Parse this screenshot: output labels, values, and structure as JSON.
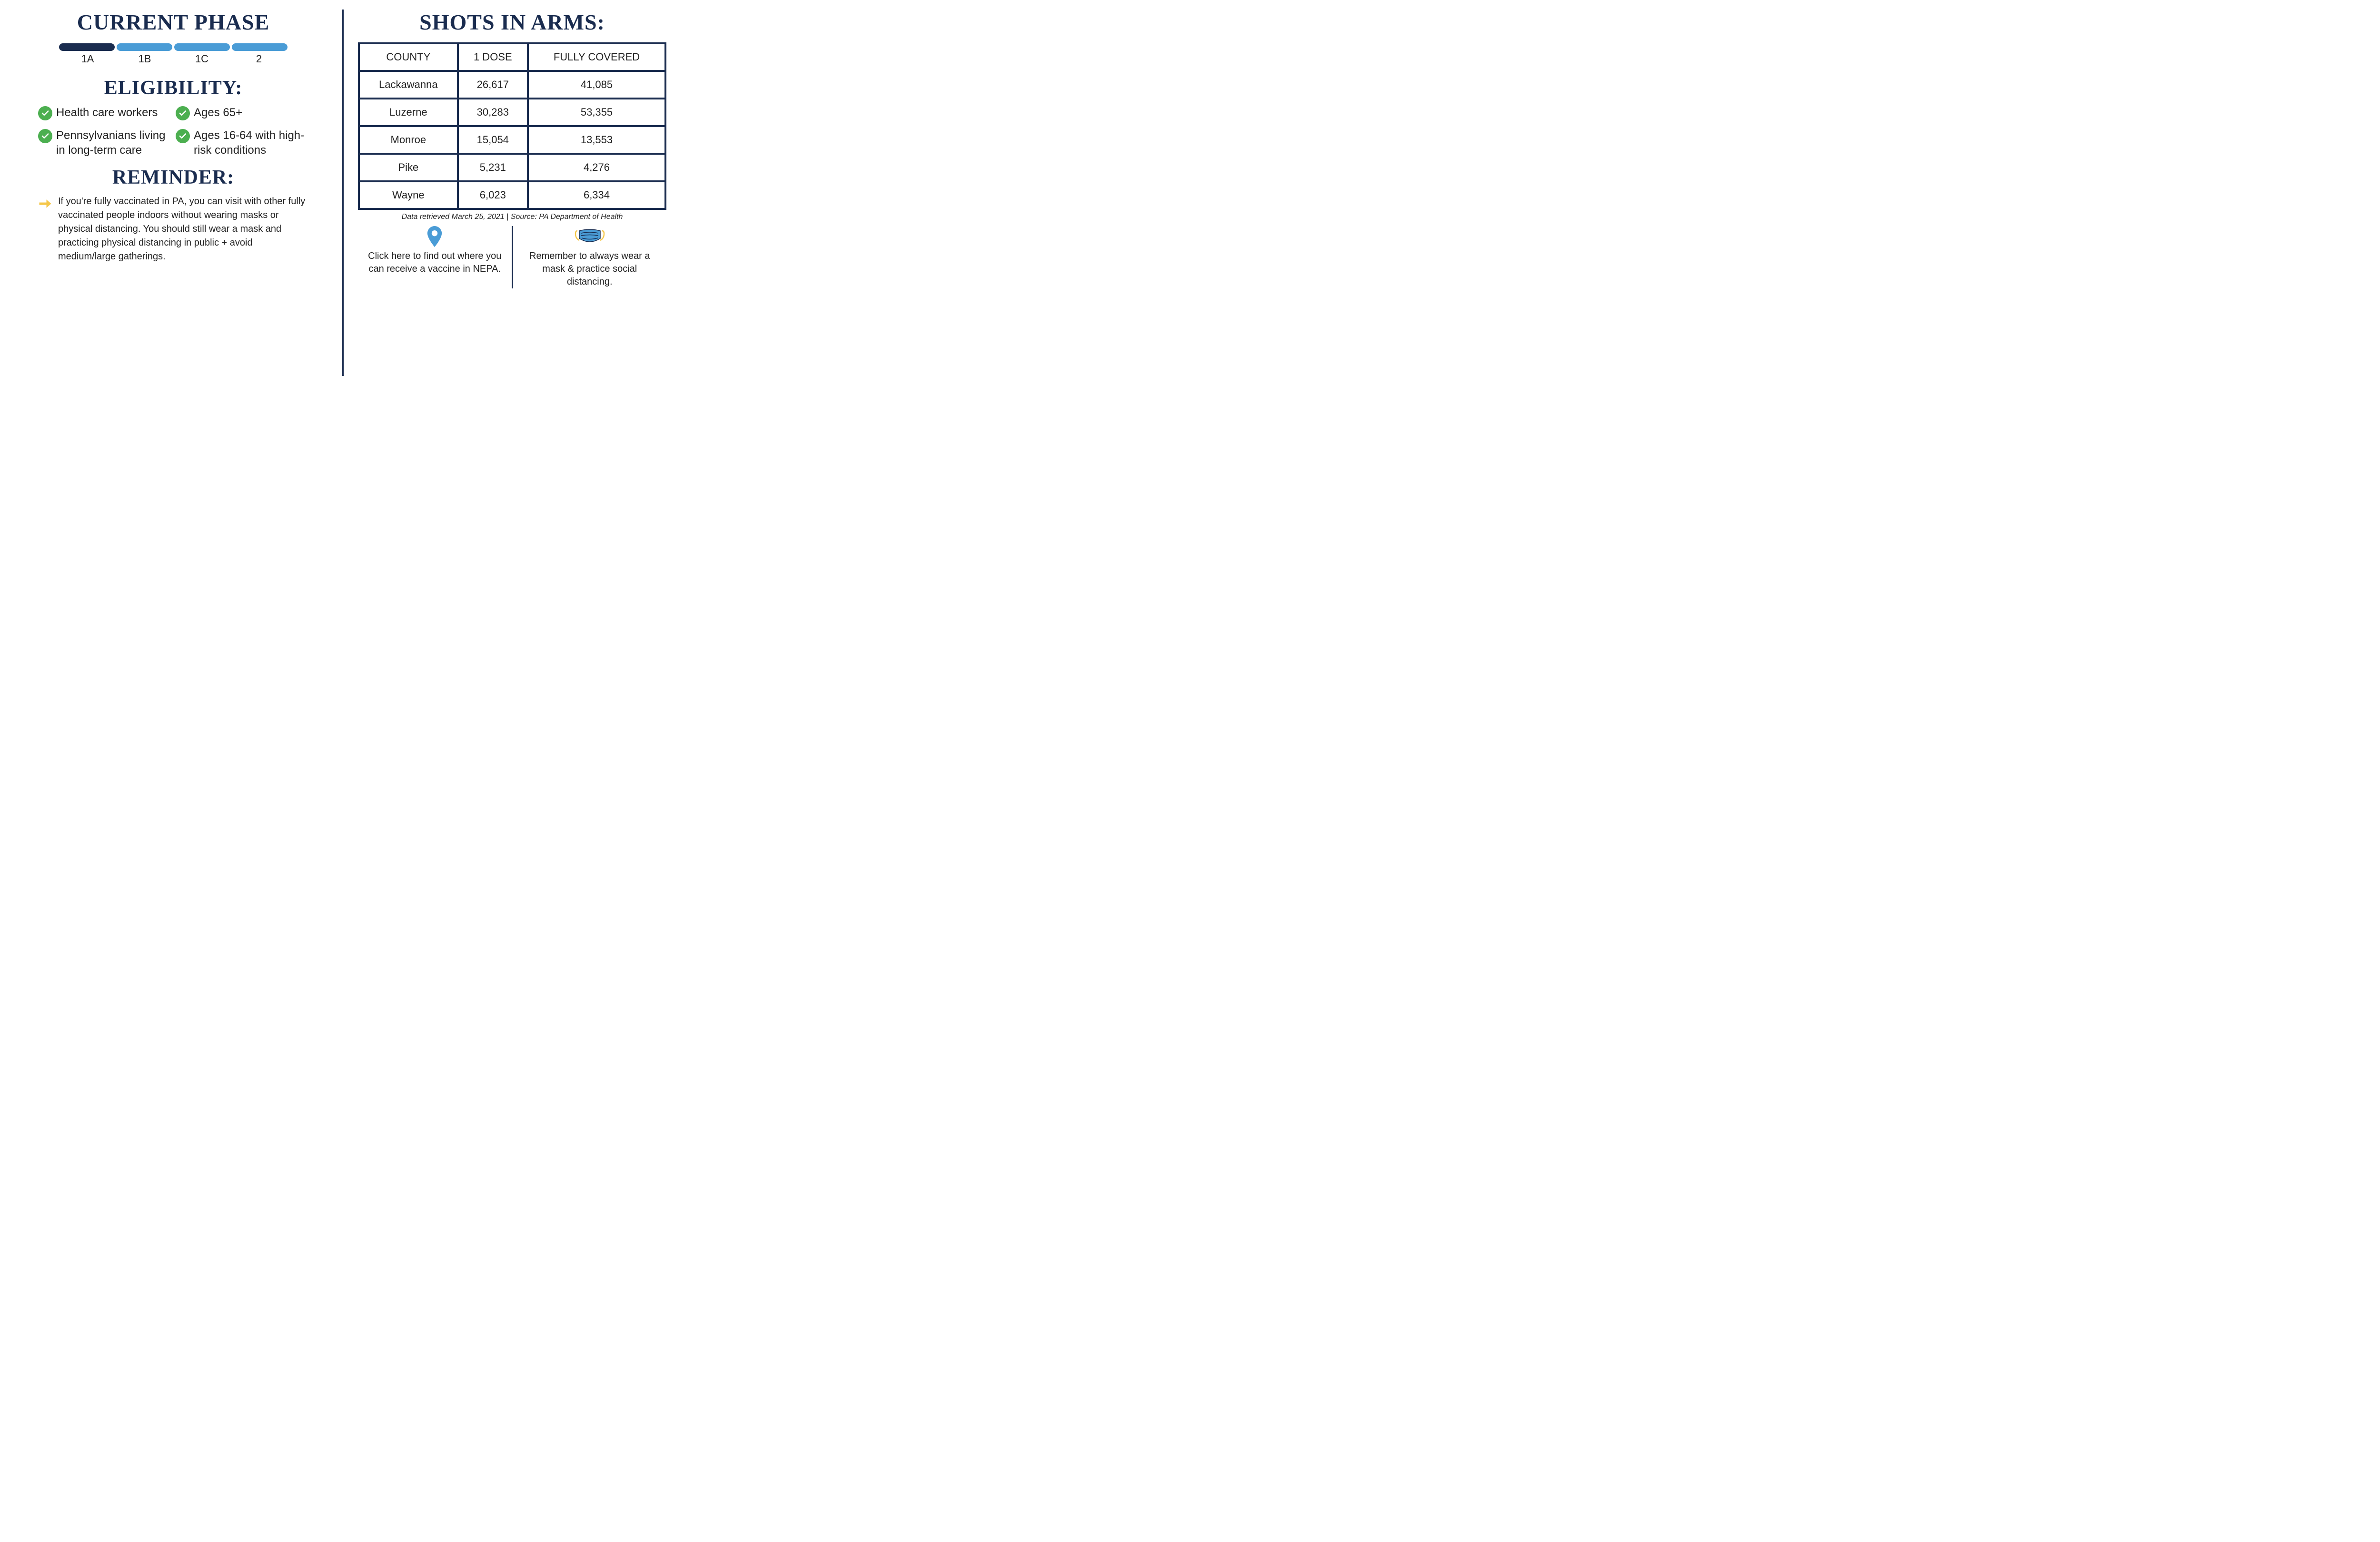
{
  "colors": {
    "navy": "#1a2c4f",
    "blue": "#4a9cd6",
    "green": "#4caf50",
    "yellow": "#f5c74a",
    "white": "#ffffff"
  },
  "left": {
    "phase_title": "CURRENT PHASE",
    "phases": {
      "segments": [
        {
          "label": "1A",
          "color": "#1a2c4f"
        },
        {
          "label": "1B",
          "color": "#4a9cd6"
        },
        {
          "label": "1C",
          "color": "#4a9cd6"
        },
        {
          "label": "2",
          "color": "#4a9cd6"
        }
      ]
    },
    "eligibility_title": "ELIGIBILITY:",
    "eligibility_items": [
      "Health care workers",
      "Ages 65+",
      "Pennsylvanians living in long-term care",
      "Ages 16-64 with high-risk conditions"
    ],
    "reminder_title": "REMINDER:",
    "reminder_text": "If you're fully vaccinated in PA, you can visit with other fully vaccinated people indoors without wearing masks or physical distancing. You should still wear a mask and practicing physical distancing in public + avoid medium/large gatherings."
  },
  "right": {
    "shots_title": "SHOTS IN ARMS:",
    "table": {
      "columns": [
        "COUNTY",
        "1 DOSE",
        "FULLY COVERED"
      ],
      "rows": [
        [
          "Lackawanna",
          "26,617",
          "41,085"
        ],
        [
          "Luzerne",
          "30,283",
          "53,355"
        ],
        [
          "Monroe",
          "15,054",
          "13,553"
        ],
        [
          "Pike",
          "5,231",
          "4,276"
        ],
        [
          "Wayne",
          "6,023",
          "6,334"
        ]
      ]
    },
    "source_note": "Data retrieved March 25, 2021 | Source: PA Department of Health",
    "callouts": [
      {
        "icon": "location-pin-icon",
        "text": "Click here to find out where you can receive a vaccine in NEPA."
      },
      {
        "icon": "mask-icon",
        "text": "Remember to always wear a mask & practice social distancing."
      }
    ]
  }
}
